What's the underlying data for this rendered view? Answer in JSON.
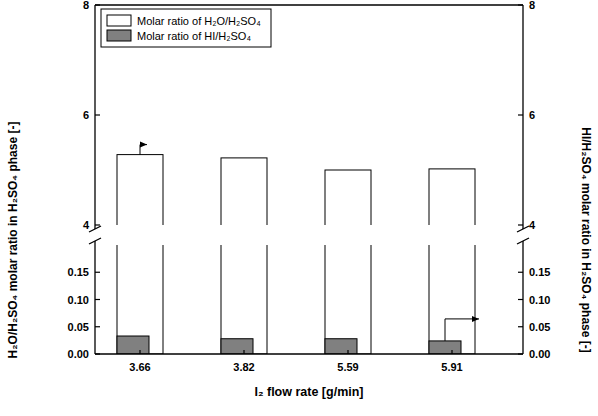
{
  "chart_data": {
    "type": "bar",
    "categories": [
      "3.66",
      "3.82",
      "5.59",
      "5.91"
    ],
    "x_label": "I₂ flow rate [g/min]",
    "y_label": "H₂O/H₂SO₄ molar ratio in H₂SO₄ phase [-]",
    "y2_label": "HI/H₂SO₄ molar ratio in H₂SO₄ phase [-]",
    "ylim": [
      0,
      8
    ],
    "y_break": [
      0.2,
      4
    ],
    "yticks": [
      {
        "value": 0,
        "label": "0.00"
      },
      {
        "value": 0.05,
        "label": "0.05"
      },
      {
        "value": 0.1,
        "label": "0.10"
      },
      {
        "value": 0.15,
        "label": "0.15"
      },
      4,
      6,
      8
    ],
    "y2lim": [
      0,
      8
    ],
    "y2_break": [
      0.2,
      4
    ],
    "y2ticks": [
      {
        "value": 0,
        "label": "0.00"
      },
      {
        "value": 0.05,
        "label": "0.05"
      },
      {
        "value": 0.1,
        "label": "0.10"
      },
      {
        "value": 0.15,
        "label": "0.15"
      },
      4,
      6,
      8
    ],
    "legend": "upper left",
    "series": [
      {
        "name": "Molar ratio of H₂O/H₂SO₄",
        "color": "#ffffff",
        "values": [
          5.28,
          5.22,
          5.0,
          5.02
        ]
      },
      {
        "name": "Molar ratio of HI/H₂SO₄",
        "color": "#808080",
        "values": [
          0.033,
          0.028,
          0.028,
          0.024
        ],
        "axis": "y2"
      }
    ]
  }
}
